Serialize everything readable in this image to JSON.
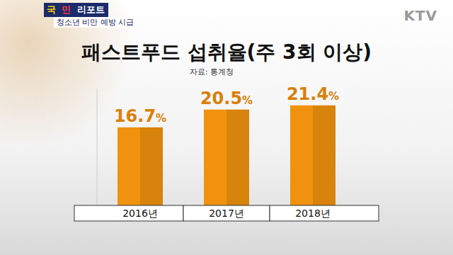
{
  "chart_data": {
    "type": "bar",
    "title": "패스트푸드 섭취율(주 3회 이상)",
    "subtitle": "자료: 통계청",
    "annotations": [
      "국",
      "민",
      "리포트",
      "청소년 비만 예방 시급",
      "KTV"
    ],
    "categories": [
      "2016년",
      "2017년",
      "2018년"
    ],
    "values": [
      16.7,
      20.5,
      21.4
    ],
    "value_labels": [
      "16.7%",
      "20.5%",
      "21.4%"
    ],
    "color": "#f0920e",
    "ylim": [
      0,
      25
    ],
    "grid": false,
    "data_labels": true,
    "tick_labels": "x"
  }
}
